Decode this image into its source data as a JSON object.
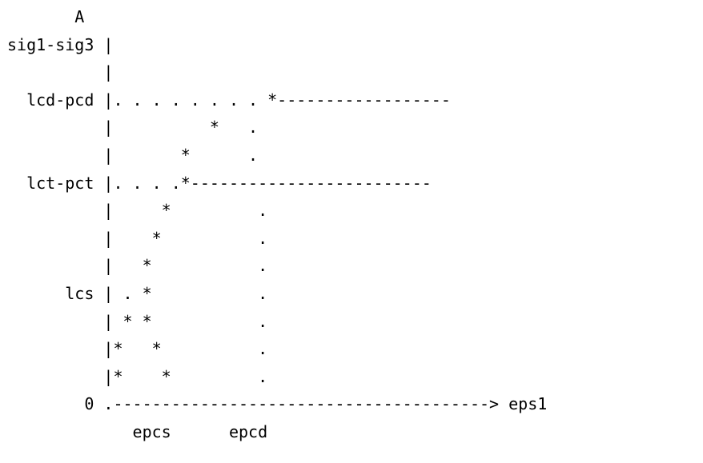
{
  "diagram": {
    "lines": [
      "       A",
      "sig1-sig3 |",
      "          |",
      "  lcd-pcd |. . . . . . . . *------------------",
      "          |          *   .",
      "          |       *      .",
      "  lct-pct |. . . .*-------------------------",
      "          |     *         .",
      "          |    *          .",
      "          |   *           .",
      "      lcs | . *           .",
      "          | * *           .",
      "          |*   *          .",
      "          |*    *         .",
      "        0 .---------------------------------------> eps1",
      "             epcs      epcd"
    ]
  }
}
